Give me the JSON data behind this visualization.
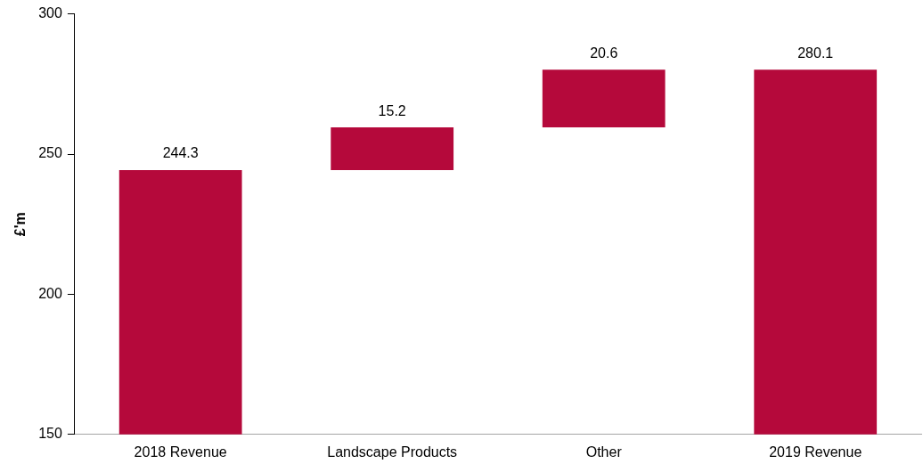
{
  "chart_data": {
    "type": "bar",
    "ylabel": "£'m",
    "categories": [
      "2018 Revenue",
      "Landscape Products",
      "Other",
      "2019 Revenue"
    ],
    "values": [
      244.3,
      15.2,
      20.6,
      280.1
    ],
    "base": [
      null,
      244.3,
      259.5,
      null
    ],
    "color": "#b5093b",
    "ylim": [
      150,
      300
    ],
    "yticks": [
      150,
      200,
      250,
      300
    ],
    "data_labels": true
  }
}
